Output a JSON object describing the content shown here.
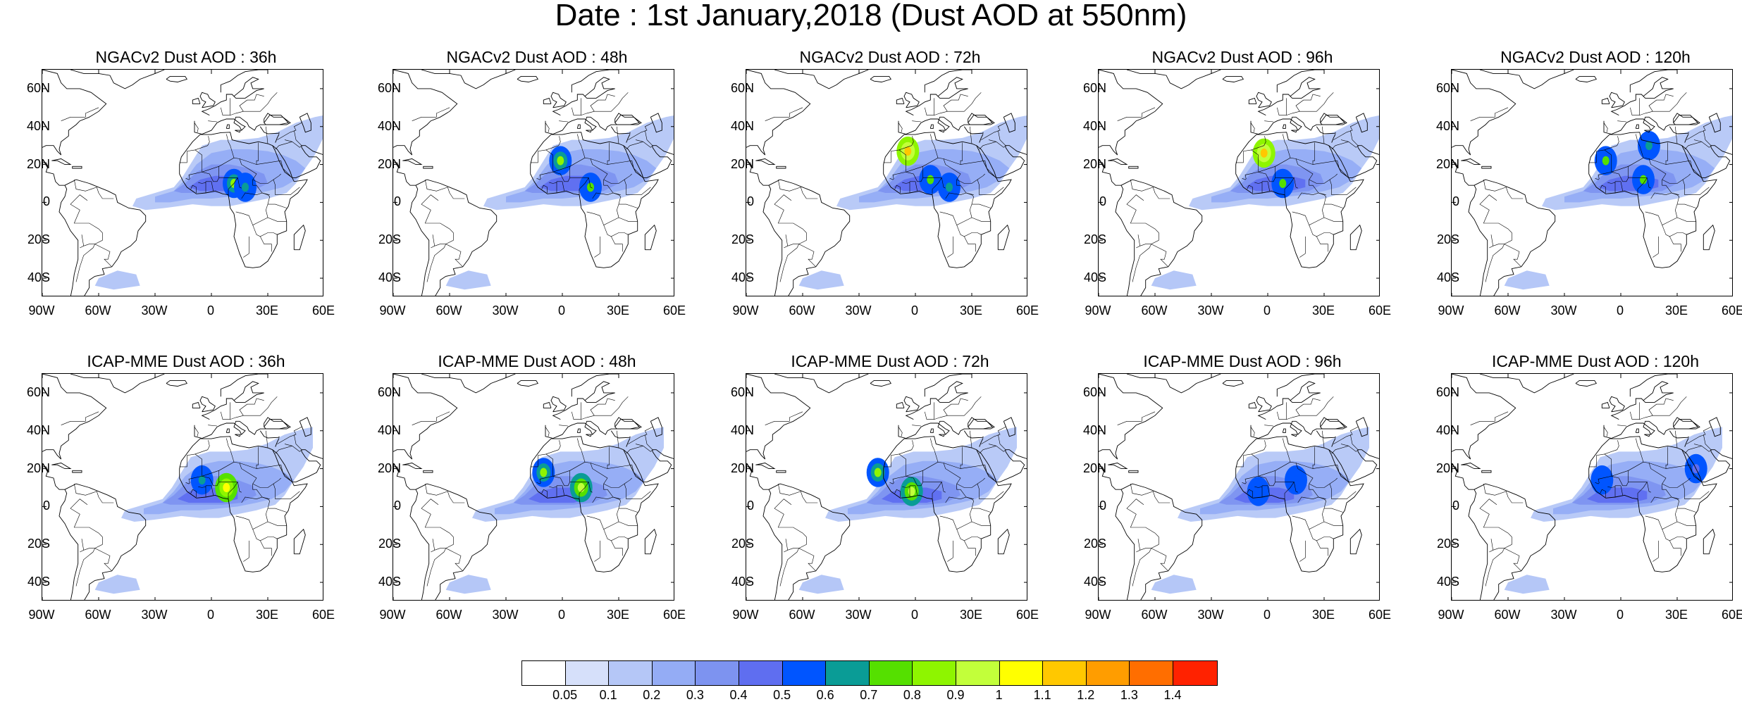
{
  "title": "Date : 1st January,2018 (Dust AOD at 550nm)",
  "lat_labels": [
    "60N",
    "40N",
    "20N",
    "0",
    "20S",
    "40S"
  ],
  "lon_labels": [
    "90W",
    "60W",
    "30W",
    "0",
    "30E",
    "60E"
  ],
  "panels": [
    {
      "title": "NGACv2 Dust AOD : 36h",
      "model": "NGACv2",
      "lead": 36,
      "hotspots": [
        {
          "lon": 12,
          "lat": 10,
          "level": 0.8
        },
        {
          "lon": 18,
          "lat": 8,
          "level": 0.6
        }
      ]
    },
    {
      "title": "NGACv2 Dust AOD : 48h",
      "model": "NGACv2",
      "lead": 48,
      "hotspots": [
        {
          "lon": -1,
          "lat": 22,
          "level": 0.8
        },
        {
          "lon": 15,
          "lat": 8,
          "level": 0.7
        }
      ]
    },
    {
      "title": "NGACv2 Dust AOD : 72h",
      "model": "NGACv2",
      "lead": 72,
      "hotspots": [
        {
          "lon": -4,
          "lat": 27,
          "level": 1.1
        },
        {
          "lon": 8,
          "lat": 12,
          "level": 0.7
        },
        {
          "lon": 18,
          "lat": 8,
          "level": 0.6
        }
      ]
    },
    {
      "title": "NGACv2 Dust AOD : 96h",
      "model": "NGACv2",
      "lead": 96,
      "hotspots": [
        {
          "lon": -2,
          "lat": 26,
          "level": 1.1
        },
        {
          "lon": 8,
          "lat": 10,
          "level": 0.7
        }
      ]
    },
    {
      "title": "NGACv2 Dust AOD : 120h",
      "model": "NGACv2",
      "lead": 120,
      "hotspots": [
        {
          "lon": -8,
          "lat": 22,
          "level": 0.7
        },
        {
          "lon": 12,
          "lat": 12,
          "level": 0.7
        },
        {
          "lon": 15,
          "lat": 30,
          "level": 0.6
        }
      ]
    },
    {
      "title": "ICAP-MME Dust AOD : 36h",
      "model": "ICAP-MME",
      "lead": 36,
      "hotspots": [
        {
          "lon": 8,
          "lat": 10,
          "level": 1.0
        },
        {
          "lon": -5,
          "lat": 14,
          "level": 0.6
        }
      ]
    },
    {
      "title": "ICAP-MME Dust AOD : 48h",
      "model": "ICAP-MME",
      "lead": 48,
      "hotspots": [
        {
          "lon": -10,
          "lat": 18,
          "level": 0.8
        },
        {
          "lon": 10,
          "lat": 10,
          "level": 0.9
        }
      ]
    },
    {
      "title": "ICAP-MME Dust AOD : 72h",
      "model": "ICAP-MME",
      "lead": 72,
      "hotspots": [
        {
          "lon": -20,
          "lat": 18,
          "level": 0.8
        },
        {
          "lon": -2,
          "lat": 8,
          "level": 0.9
        }
      ]
    },
    {
      "title": "ICAP-MME Dust AOD : 96h",
      "model": "ICAP-MME",
      "lead": 96,
      "hotspots": [
        {
          "lon": -5,
          "lat": 8,
          "level": 0.5
        },
        {
          "lon": 15,
          "lat": 14,
          "level": 0.5
        }
      ]
    },
    {
      "title": "ICAP-MME Dust AOD : 120h",
      "model": "ICAP-MME",
      "lead": 120,
      "hotspots": [
        {
          "lon": -10,
          "lat": 14,
          "level": 0.5
        },
        {
          "lon": 40,
          "lat": 20,
          "level": 0.4
        }
      ]
    }
  ],
  "colorbar": {
    "labels": [
      "0.05",
      "0.1",
      "0.2",
      "0.3",
      "0.4",
      "0.5",
      "0.6",
      "0.7",
      "0.8",
      "0.9",
      "1",
      "1.1",
      "1.2",
      "1.3",
      "1.4"
    ],
    "colors": [
      "#ffffff",
      "#d6e0fa",
      "#b5c7f7",
      "#94acf5",
      "#7d93f0",
      "#5f6ef0",
      "#0055ff",
      "#0a9c96",
      "#55e000",
      "#8ef500",
      "#c2ff3a",
      "#ffff00",
      "#ffc800",
      "#ff9d00",
      "#ff6e00",
      "#ff2200"
    ]
  },
  "map_extent": {
    "lon": [
      -90,
      60
    ],
    "lat": [
      -50,
      70
    ]
  }
}
